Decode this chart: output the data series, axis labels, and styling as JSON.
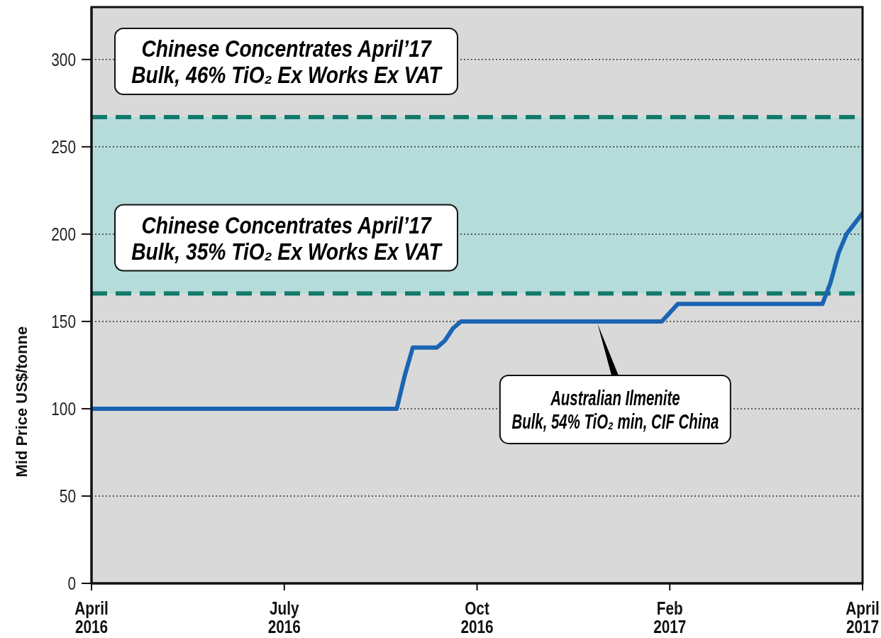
{
  "chart_data": {
    "type": "line",
    "ylabel": "Mid Price US$/tonne",
    "categories": [
      "April 2016",
      null,
      null,
      null,
      null,
      null,
      null,
      null,
      null,
      null,
      null,
      null,
      null,
      null,
      null,
      null,
      null,
      null,
      null,
      null,
      null,
      null,
      null,
      null,
      "July 2016",
      null,
      null,
      null,
      null,
      null,
      null,
      null,
      null,
      null,
      null,
      null,
      null,
      null,
      null,
      null,
      null,
      null,
      null,
      null,
      null,
      null,
      null,
      null,
      "Oct 2016",
      null,
      null,
      null,
      null,
      null,
      null,
      null,
      null,
      null,
      null,
      null,
      null,
      null,
      null,
      null,
      null,
      null,
      null,
      null,
      null,
      null,
      null,
      null,
      "Feb 2017",
      null,
      null,
      null,
      null,
      null,
      null,
      null,
      null,
      null,
      null,
      null,
      null,
      null,
      null,
      null,
      null,
      null,
      null,
      null,
      null,
      null,
      null,
      null,
      "April 2017"
    ],
    "series": [
      {
        "name": "Australian Ilmenite\nBulk, 54% TiO₂ min, CIF China",
        "color": "#1b64b4",
        "values": [
          100,
          100,
          100,
          100,
          100,
          100,
          100,
          100,
          100,
          100,
          100,
          100,
          100,
          100,
          100,
          100,
          100,
          100,
          100,
          100,
          100,
          100,
          100,
          100,
          100,
          100,
          100,
          100,
          100,
          100,
          100,
          100,
          100,
          100,
          100,
          100,
          100,
          100,
          100,
          119,
          135,
          135,
          135,
          135,
          139,
          146,
          150,
          150,
          150,
          150,
          150,
          150,
          150,
          150,
          150,
          150,
          150,
          150,
          150,
          150,
          150,
          150,
          150,
          150,
          150,
          150,
          150,
          150,
          150,
          150,
          150,
          150,
          155,
          160,
          160,
          160,
          160,
          160,
          160,
          160,
          160,
          160,
          160,
          160,
          160,
          160,
          160,
          160,
          160,
          160,
          160,
          160,
          172,
          189,
          200,
          206,
          212
        ]
      }
    ],
    "ylim": [
      0,
      330
    ],
    "yticks": [
      0,
      50,
      100,
      150,
      200,
      250,
      300
    ],
    "grid": "y",
    "bands": [
      {
        "axis": "y",
        "from": 166,
        "to": 267,
        "color": "#b5dcda"
      }
    ],
    "ref_lines": [
      {
        "axis": "y",
        "value": 267,
        "label": "Chinese Concentrates April’17\nBulk, 46% TiO₂ Ex Works Ex VAT",
        "color": "#137a6b",
        "line_style": "dashed"
      },
      {
        "axis": "y",
        "value": 166,
        "label": "Chinese Concentrates April’17\nBulk, 35% TiO₂ Ex Works Ex VAT",
        "color": "#137a6b",
        "line_style": "dashed"
      }
    ]
  }
}
